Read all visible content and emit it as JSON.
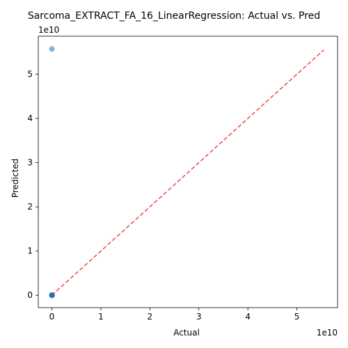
{
  "chart_data": {
    "type": "scatter",
    "title": "Sarcoma_EXTRACT_FA_16_LinearRegression: Actual vs. Pred",
    "xlabel": "Actual",
    "ylabel": "Predicted",
    "x_offset_label": "1e10",
    "y_offset_label": "1e10",
    "x_scale_exponent": 10,
    "y_scale_exponent": 10,
    "xlim": [
      -0.277,
      5.83
    ],
    "ylim": [
      -0.28,
      5.86
    ],
    "xticks": [
      0,
      1,
      2,
      3,
      4,
      5
    ],
    "yticks": [
      0,
      1,
      2,
      3,
      4,
      5
    ],
    "grid": false,
    "points": [
      {
        "x": 0.0,
        "y": 5.57
      },
      {
        "x": 0.0,
        "y": 0.0
      },
      {
        "x": 0.002,
        "y": 0.001
      },
      {
        "x": 0.004,
        "y": 0.0
      },
      {
        "x": 0.001,
        "y": 0.002
      },
      {
        "x": 0.003,
        "y": 0.0
      },
      {
        "x": 0.0,
        "y": 0.003
      },
      {
        "x": 0.005,
        "y": 0.002
      },
      {
        "x": 0.002,
        "y": 0.0
      }
    ],
    "reference_line": {
      "from": [
        0,
        0
      ],
      "to": [
        5.55,
        5.55
      ],
      "style": "dashed"
    },
    "colors": {
      "points": "#1f77b4",
      "reference_line": "#e8282b",
      "axes": "#000000"
    }
  }
}
